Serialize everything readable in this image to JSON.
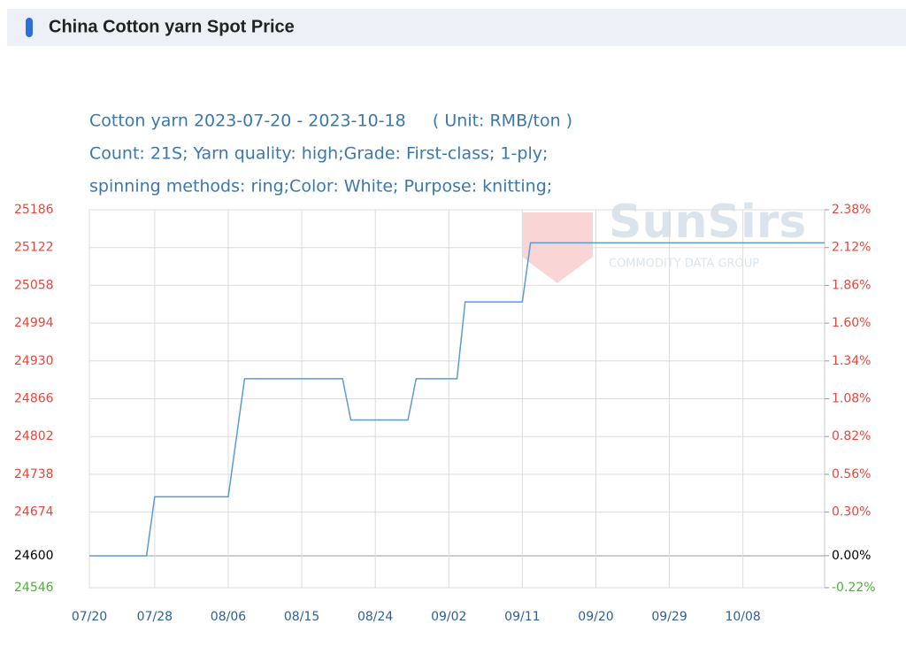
{
  "header": {
    "title": "China Cotton yarn Spot Price"
  },
  "chart_data": {
    "type": "line",
    "subtitle_lines": [
      "Cotton yarn 2023-07-20 - 2023-10-18     ( Unit: RMB/ton )",
      "Count: 21S; Yarn quality: high;Grade: First-class; 1-ply;",
      "spinning methods: ring;Color: White; Purpose: knitting;"
    ],
    "watermark": {
      "brand": "SunSirs",
      "tagline": "COMMODITY DATA GROUP"
    },
    "xlim": [
      "07/20",
      "10/18"
    ],
    "xticks": [
      "07/20",
      "07/28",
      "08/06",
      "08/15",
      "08/24",
      "09/02",
      "09/11",
      "09/20",
      "09/29",
      "10/08"
    ],
    "ylim": [
      24546,
      25186
    ],
    "yticks": [
      24546,
      24600,
      24674,
      24738,
      24802,
      24866,
      24930,
      24994,
      25058,
      25122,
      25186
    ],
    "y2lim": [
      -0.22,
      2.38
    ],
    "y2ticks": [
      {
        "value": -0.22,
        "label": "-0.22%"
      },
      {
        "value": 0,
        "label": "0.00%"
      },
      {
        "value": 0.3,
        "label": "0.30%"
      },
      {
        "value": 0.56,
        "label": "0.56%"
      },
      {
        "value": 0.82,
        "label": "0.82%"
      },
      {
        "value": 1.08,
        "label": "1.08%"
      },
      {
        "value": 1.34,
        "label": "1.34%"
      },
      {
        "value": 1.6,
        "label": "1.60%"
      },
      {
        "value": 1.86,
        "label": "1.86%"
      },
      {
        "value": 2.12,
        "label": "2.12%"
      },
      {
        "value": 2.38,
        "label": "2.38%"
      }
    ],
    "base_value": 24600,
    "tick_colors": {
      "above": "#e8463a",
      "base": "#000000",
      "below": "#4caf3a"
    },
    "grid": true,
    "series": [
      {
        "color": "#5b9bd5",
        "x": [
          "07/20",
          "07/27",
          "07/28",
          "08/06",
          "08/08",
          "08/20",
          "08/21",
          "08/28",
          "08/29",
          "09/03",
          "09/04",
          "09/11",
          "09/12",
          "10/18"
        ],
        "values": [
          24600,
          24600,
          24700,
          24700,
          24900,
          24900,
          24830,
          24830,
          24900,
          24900,
          25030,
          25030,
          25130,
          25130
        ]
      }
    ]
  }
}
